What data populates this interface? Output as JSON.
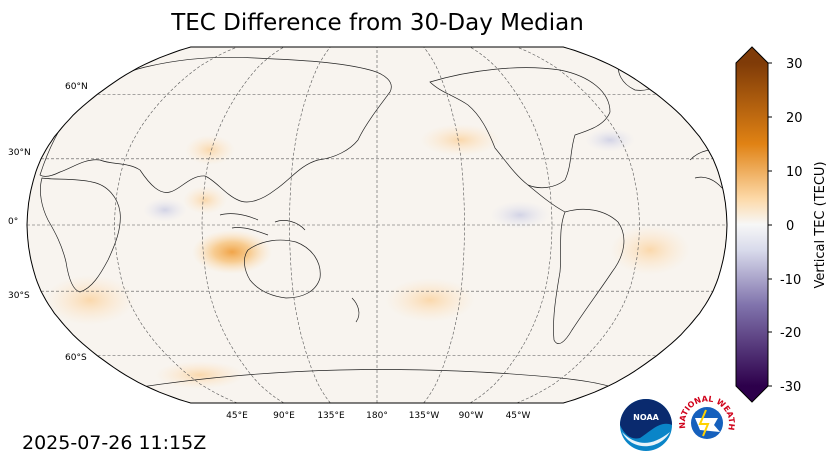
{
  "title": "TEC Difference from 30-Day Median",
  "timestamp": "2025-07-26 11:15Z",
  "map": {
    "projection": "Robinson",
    "central_longitude": "180°",
    "lat_labels": [
      "60°N",
      "30°N",
      "0°",
      "30°S",
      "60°S"
    ],
    "lon_labels": [
      "45°E",
      "90°E",
      "135°E",
      "180°",
      "135°W",
      "90°W",
      "45°W"
    ],
    "background_color": "#f8f4ef",
    "anomaly_features": [
      "Strong positive anomaly (~+10 to +15 TECU) north of Australia / Indonesia",
      "Mild positive anomalies over southern Indian Ocean, South Pacific and southern Africa",
      "Weak negative anomalies near equatorial Indian Ocean and Pacific"
    ]
  },
  "colorbar": {
    "label": "Vertical TEC (TECU)",
    "ticks": [
      "30",
      "20",
      "10",
      "0",
      "-10",
      "-20",
      "-30"
    ],
    "range": [
      -30,
      30
    ],
    "extend": "both",
    "colors": {
      "max": "#7f3b08",
      "high": "#e08214",
      "low_pos": "#fdd9a8",
      "zero": "#f7f7f7",
      "low_neg": "#d8daeb",
      "mid_neg": "#8073ac",
      "min": "#2d004b"
    }
  },
  "logos": {
    "noaa_text": "NOAA",
    "nws_text": "NATIONAL WEATHER SERVICE"
  }
}
